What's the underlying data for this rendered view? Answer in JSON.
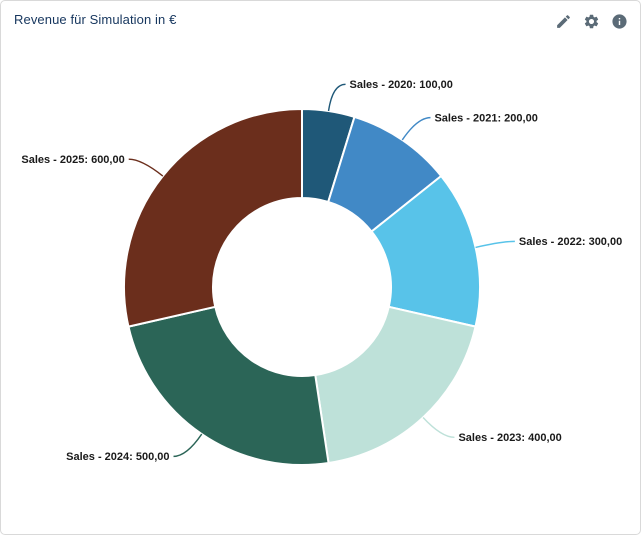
{
  "header": {
    "title": "Revenue für Simulation in €",
    "actions": [
      {
        "icon": "pencil-icon",
        "name": "edit"
      },
      {
        "icon": "gear-icon",
        "name": "settings"
      },
      {
        "icon": "info-icon",
        "name": "info"
      }
    ]
  },
  "theme": {
    "title_color": "#16365e",
    "icon_color": "#5b6b77",
    "border_color": "#d9d9d9",
    "label_color": "#1a1a1a",
    "card_background": "#ffffff",
    "separator_color": "#ffffff"
  },
  "chart_data": {
    "type": "pie",
    "donut": true,
    "title": "Revenue für Simulation in €",
    "series_name": "Sales",
    "categories": [
      "2020",
      "2021",
      "2022",
      "2023",
      "2024",
      "2025"
    ],
    "values": [
      100,
      200,
      300,
      400,
      500,
      600
    ],
    "start_angle_deg": 0,
    "direction": "clockwise",
    "legend": "none (callout labels around donut)",
    "slices": [
      {
        "category": "2020",
        "label_text": "Sales - 2020: 100,00",
        "value": 100,
        "color": "#1f5878"
      },
      {
        "category": "2021",
        "label_text": "Sales - 2021: 200,00",
        "value": 200,
        "color": "#4189c6"
      },
      {
        "category": "2022",
        "label_text": "Sales - 2022: 300,00",
        "value": 300,
        "color": "#58c3e9"
      },
      {
        "category": "2023",
        "label_text": "Sales - 2023: 400,00",
        "value": 400,
        "color": "#bee1d9"
      },
      {
        "category": "2024",
        "label_text": "Sales - 2024: 500,00",
        "value": 500,
        "color": "#2b6557"
      },
      {
        "category": "2025",
        "label_text": "Sales - 2025: 600,00",
        "value": 600,
        "color": "#6b2e1c"
      }
    ]
  }
}
